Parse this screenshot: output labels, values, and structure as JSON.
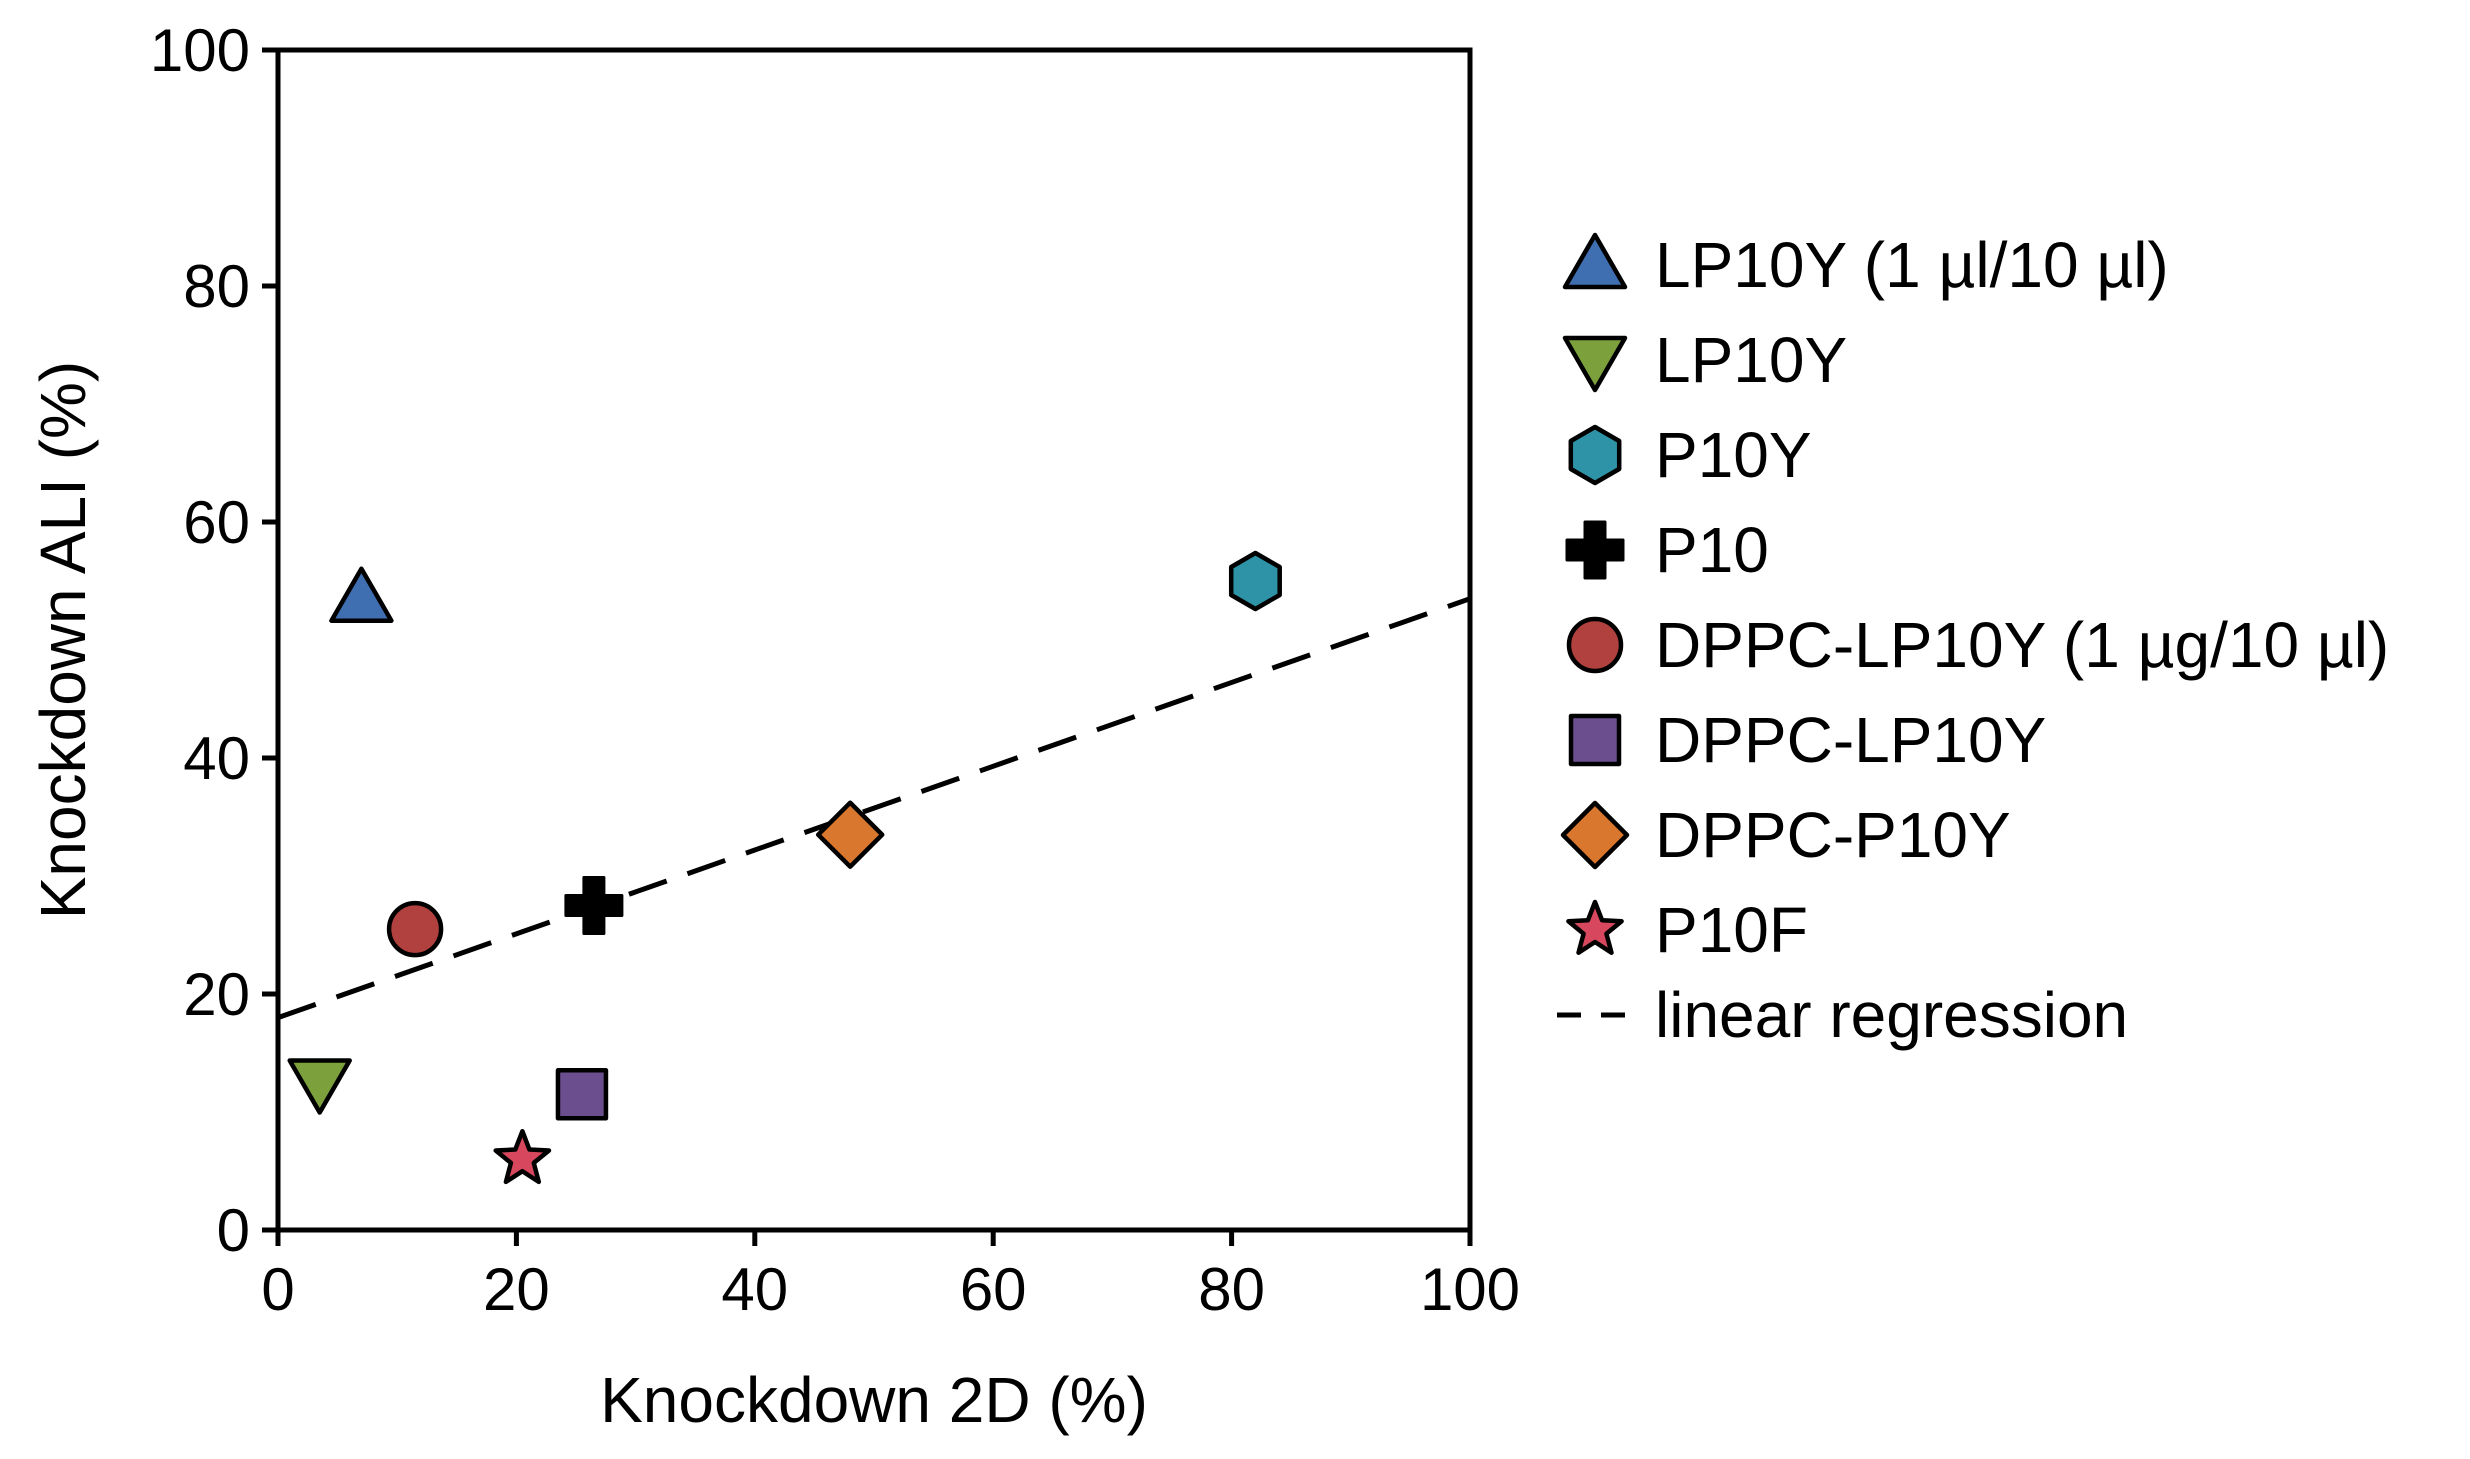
{
  "chart_data": {
    "type": "scatter",
    "title": "",
    "xlabel": "Knockdown 2D (%)",
    "ylabel": "Knockdown ALI (%)",
    "xlim": [
      0,
      100
    ],
    "ylim": [
      0,
      100
    ],
    "xticks": [
      0,
      20,
      40,
      60,
      80,
      100
    ],
    "yticks": [
      0,
      20,
      40,
      60,
      80,
      100
    ],
    "grid": false,
    "legend_position": "right",
    "series": [
      {
        "name": "LP10Y (1 µl/10 µl)",
        "marker": "triangle-up",
        "color": "#3F6FB0",
        "x": 7,
        "y": 53.5
      },
      {
        "name": "LP10Y",
        "marker": "triangle-down",
        "color": "#7BA03C",
        "x": 3.5,
        "y": 12.5
      },
      {
        "name": "P10Y",
        "marker": "hexagon",
        "color": "#2E93A6",
        "x": 82,
        "y": 55
      },
      {
        "name": "P10",
        "marker": "cross",
        "color": "#000000",
        "x": 26.5,
        "y": 27.5
      },
      {
        "name": "DPPC-LP10Y (1 µg/10 µl)",
        "marker": "circle",
        "color": "#B0413E",
        "x": 11.5,
        "y": 25.5
      },
      {
        "name": "DPPC-LP10Y",
        "marker": "square",
        "color": "#6A4E8E",
        "x": 25.5,
        "y": 11.5
      },
      {
        "name": "DPPC-P10Y",
        "marker": "diamond",
        "color": "#D9772E",
        "x": 48,
        "y": 33.5
      },
      {
        "name": "P10F",
        "marker": "star",
        "color": "#D7475E",
        "x": 20.5,
        "y": 6
      }
    ],
    "regression": {
      "name": "linear regression",
      "style": "dashed",
      "x": [
        0,
        100
      ],
      "y": [
        18,
        53.5
      ]
    }
  }
}
